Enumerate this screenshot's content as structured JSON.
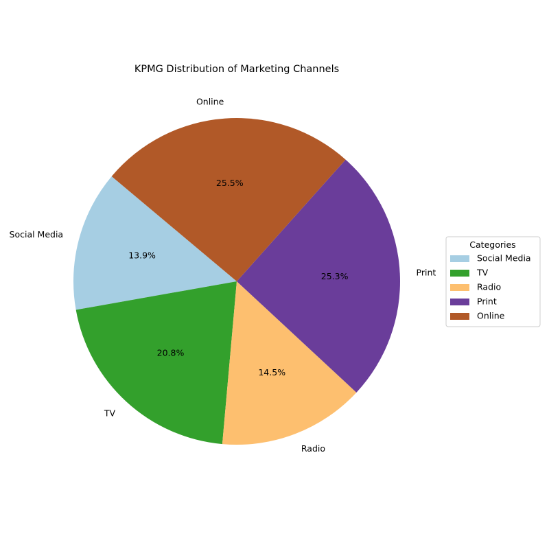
{
  "chart_data": {
    "type": "pie",
    "title": "KPMG Distribution of Marketing Channels",
    "categories": [
      "Social Media",
      "TV",
      "Radio",
      "Print",
      "Online"
    ],
    "values": [
      13.9,
      20.8,
      14.5,
      25.3,
      25.5
    ],
    "percent_labels": [
      "13.9%",
      "20.8%",
      "14.5%",
      "25.3%",
      "25.5%"
    ],
    "colors": [
      "#a6cee3",
      "#33a02c",
      "#fdbf6f",
      "#6a3d9a",
      "#b15928"
    ],
    "start_angle_deg": 140,
    "direction": "counterclockwise",
    "legend": {
      "title": "Categories",
      "position": "center-right",
      "items": [
        "Social Media",
        "TV",
        "Radio",
        "Print",
        "Online"
      ]
    }
  }
}
